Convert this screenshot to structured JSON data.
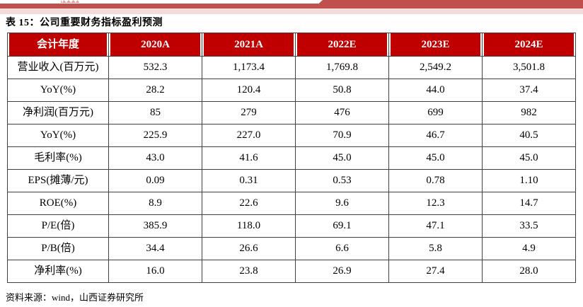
{
  "page": {
    "title": "表 15：公司重要财务指标盈利预测",
    "source": "资料来源：wind，山西证券研究所"
  },
  "colors": {
    "header_bg": "#C00000",
    "banner_red": "#C0504D",
    "banner_pink": "#F2DCDB",
    "border": "#404040"
  },
  "table": {
    "columns": [
      "会计年度",
      "2020A",
      "2021A",
      "2022E",
      "2023E",
      "2024E"
    ],
    "rows": [
      {
        "label": "营业收入(百万元)",
        "values": [
          "532.3",
          "1,173.4",
          "1,769.8",
          "2,549.2",
          "3,501.8"
        ]
      },
      {
        "label": "YoY(%)",
        "values": [
          "28.2",
          "120.4",
          "50.8",
          "44.0",
          "37.4"
        ]
      },
      {
        "label": "净利润(百万元)",
        "values": [
          "85",
          "279",
          "476",
          "699",
          "982"
        ]
      },
      {
        "label": "YoY(%)",
        "values": [
          "225.9",
          "227.0",
          "70.9",
          "46.7",
          "40.5"
        ]
      },
      {
        "label": "毛利率(%)",
        "values": [
          "43.0",
          "41.6",
          "45.0",
          "45.0",
          "45.0"
        ]
      },
      {
        "label": "EPS(摊薄/元)",
        "values": [
          "0.09",
          "0.31",
          "0.53",
          "0.78",
          "1.10"
        ]
      },
      {
        "label": "ROE(%)",
        "values": [
          "8.9",
          "22.6",
          "9.6",
          "12.3",
          "14.7"
        ]
      },
      {
        "label": "P/E(倍)",
        "values": [
          "385.9",
          "118.0",
          "69.1",
          "47.1",
          "33.5"
        ]
      },
      {
        "label": "P/B(倍)",
        "values": [
          "34.4",
          "26.6",
          "6.6",
          "5.8",
          "4.9"
        ]
      },
      {
        "label": "净利率(%)",
        "values": [
          "16.0",
          "23.8",
          "26.9",
          "27.4",
          "28.0"
        ]
      }
    ]
  }
}
